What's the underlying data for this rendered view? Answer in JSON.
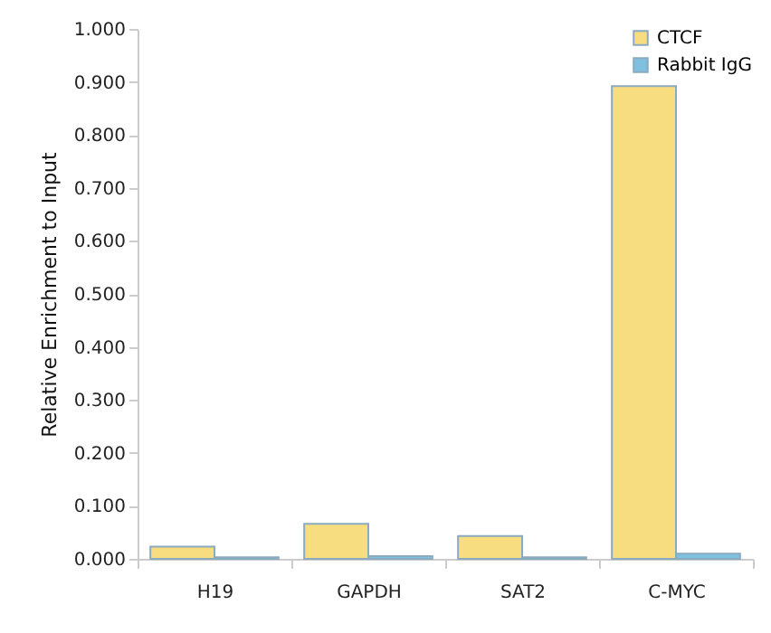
{
  "chart_data": {
    "type": "bar",
    "ylabel": "Relative Enrichment to Input",
    "categories": [
      "H19",
      "GAPDH",
      "SAT2",
      "C-MYC"
    ],
    "series": [
      {
        "name": "CTCF",
        "color": "#f8dc80",
        "values": [
          0.023,
          0.066,
          0.043,
          0.892
        ]
      },
      {
        "name": "Rabbit IgG",
        "color": "#7fbfe0",
        "values": [
          0.003,
          0.005,
          0.003,
          0.01
        ]
      }
    ],
    "ylim": [
      0,
      1
    ],
    "yticks": [
      {
        "value": 0,
        "label": "0.000"
      },
      {
        "value": 0.1,
        "label": "0.100"
      },
      {
        "value": 0.2,
        "label": "0.200"
      },
      {
        "value": 0.3,
        "label": "0.300"
      },
      {
        "value": 0.4,
        "label": "0.400"
      },
      {
        "value": 0.5,
        "label": "0.500"
      },
      {
        "value": 0.6,
        "label": "0.600"
      },
      {
        "value": 0.7,
        "label": "0.700"
      },
      {
        "value": 0.8,
        "label": "0.800"
      },
      {
        "value": 0.9,
        "label": "0.900"
      },
      {
        "value": 1,
        "label": "1.000"
      }
    ],
    "grid": false,
    "legend": "top right"
  }
}
